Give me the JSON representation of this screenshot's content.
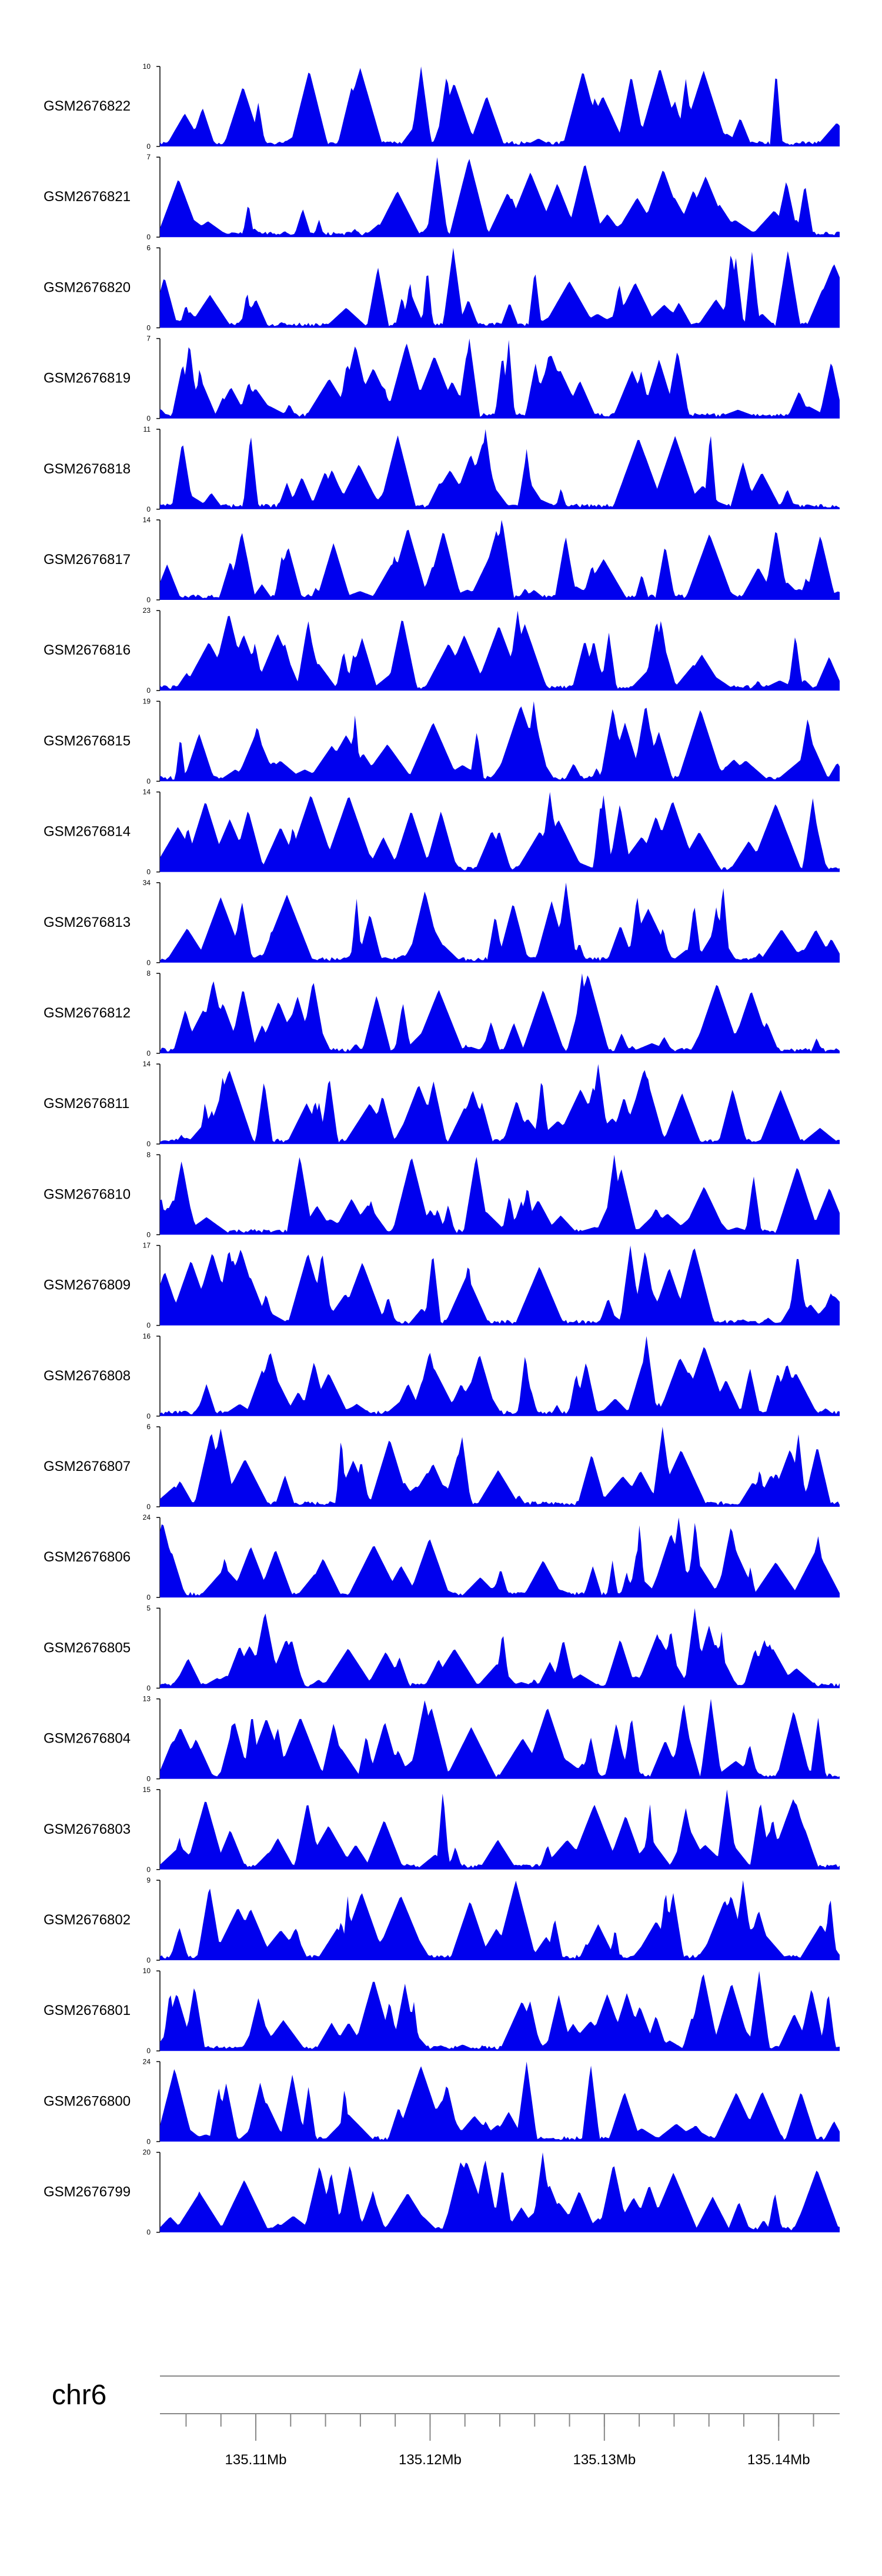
{
  "chart_data": {
    "type": "area",
    "chromosome": "chr6",
    "xlim": [
      135.1045,
      135.1435
    ],
    "x_ticks": [
      {
        "value": 135.11,
        "label": "135.11Mb"
      },
      {
        "value": 135.12,
        "label": "135.12Mb"
      },
      {
        "value": 135.13,
        "label": "135.13Mb"
      },
      {
        "value": 135.14,
        "label": "135.14Mb"
      }
    ],
    "minor_tick_step": 0.002,
    "fill_color": "#0000ee",
    "tracks": [
      {
        "name": "GSM2676822",
        "ymax": 10,
        "seed": 22
      },
      {
        "name": "GSM2676821",
        "ymax": 7,
        "seed": 21
      },
      {
        "name": "GSM2676820",
        "ymax": 6,
        "seed": 20
      },
      {
        "name": "GSM2676819",
        "ymax": 7,
        "seed": 19
      },
      {
        "name": "GSM2676818",
        "ymax": 11,
        "seed": 18
      },
      {
        "name": "GSM2676817",
        "ymax": 14,
        "seed": 17
      },
      {
        "name": "GSM2676816",
        "ymax": 23,
        "seed": 16
      },
      {
        "name": "GSM2676815",
        "ymax": 19,
        "seed": 15
      },
      {
        "name": "GSM2676814",
        "ymax": 14,
        "seed": 14
      },
      {
        "name": "GSM2676813",
        "ymax": 34,
        "seed": 13
      },
      {
        "name": "GSM2676812",
        "ymax": 8,
        "seed": 12
      },
      {
        "name": "GSM2676811",
        "ymax": 14,
        "seed": 11
      },
      {
        "name": "GSM2676810",
        "ymax": 8,
        "seed": 10
      },
      {
        "name": "GSM2676809",
        "ymax": 17,
        "seed": 9
      },
      {
        "name": "GSM2676808",
        "ymax": 16,
        "seed": 8
      },
      {
        "name": "GSM2676807",
        "ymax": 6,
        "seed": 7
      },
      {
        "name": "GSM2676806",
        "ymax": 24,
        "seed": 6
      },
      {
        "name": "GSM2676805",
        "ymax": 5,
        "seed": 5
      },
      {
        "name": "GSM2676804",
        "ymax": 13,
        "seed": 4
      },
      {
        "name": "GSM2676803",
        "ymax": 15,
        "seed": 3
      },
      {
        "name": "GSM2676802",
        "ymax": 9,
        "seed": 2
      },
      {
        "name": "GSM2676801",
        "ymax": 10,
        "seed": 1
      },
      {
        "name": "GSM2676800",
        "ymax": 24,
        "seed": 100
      },
      {
        "name": "GSM2676799",
        "ymax": 20,
        "seed": 99
      }
    ],
    "ymin_label": "0"
  }
}
